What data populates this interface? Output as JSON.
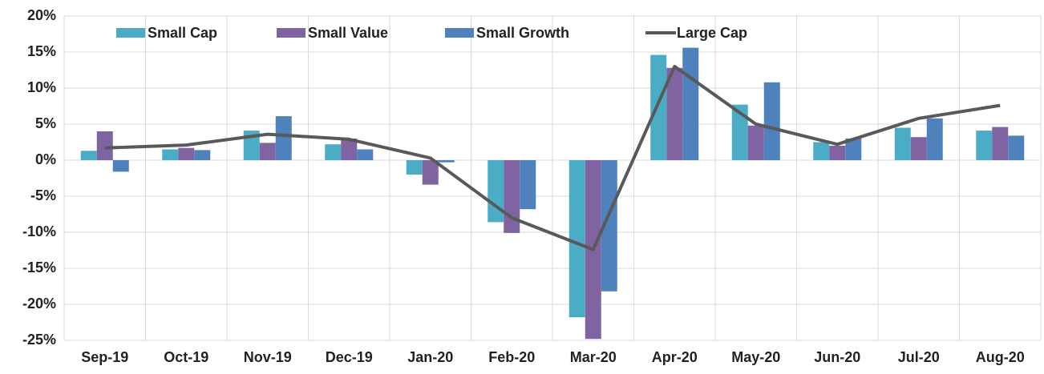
{
  "chart_data": {
    "type": "bar_line",
    "categories": [
      "Sep-19",
      "Oct-19",
      "Nov-19",
      "Dec-19",
      "Jan-20",
      "Feb-20",
      "Mar-20",
      "Apr-20",
      "May-20",
      "Jun-20",
      "Jul-20",
      "Aug-20"
    ],
    "series": [
      {
        "name": "Small Cap",
        "type": "bar",
        "color": "#4bacc6",
        "values": [
          1.3,
          1.5,
          4.1,
          2.2,
          -2.0,
          -8.6,
          -21.8,
          14.6,
          7.7,
          2.5,
          4.5,
          4.1
        ]
      },
      {
        "name": "Small Value",
        "type": "bar",
        "color": "#8064a2",
        "values": [
          4.0,
          1.7,
          2.4,
          3.0,
          -3.4,
          -10.1,
          -24.8,
          12.8,
          4.8,
          2.0,
          3.2,
          4.6
        ]
      },
      {
        "name": "Small Growth",
        "type": "bar",
        "color": "#4f81bd",
        "values": [
          -1.6,
          1.4,
          6.1,
          1.5,
          -0.3,
          -6.8,
          -18.2,
          15.6,
          10.8,
          3.0,
          5.8,
          3.4
        ]
      },
      {
        "name": "Large Cap",
        "type": "line",
        "color": "#595959",
        "values": [
          1.7,
          2.1,
          3.6,
          2.9,
          0.3,
          -8.0,
          -12.4,
          13.0,
          5.0,
          2.2,
          5.8,
          7.6
        ]
      }
    ],
    "ylim": [
      -25,
      20
    ],
    "yticks": [
      {
        "value": -25,
        "label": "-25%"
      },
      {
        "value": -20,
        "label": "-20%"
      },
      {
        "value": -15,
        "label": "-15%"
      },
      {
        "value": -10,
        "label": "-10%"
      },
      {
        "value": -5,
        "label": "-5%"
      },
      {
        "value": 0,
        "label": "0%"
      },
      {
        "value": 5,
        "label": "5%"
      },
      {
        "value": 10,
        "label": "10%"
      },
      {
        "value": 15,
        "label": "15%"
      },
      {
        "value": 20,
        "label": "20%"
      }
    ],
    "grid": true,
    "legend": "top"
  }
}
